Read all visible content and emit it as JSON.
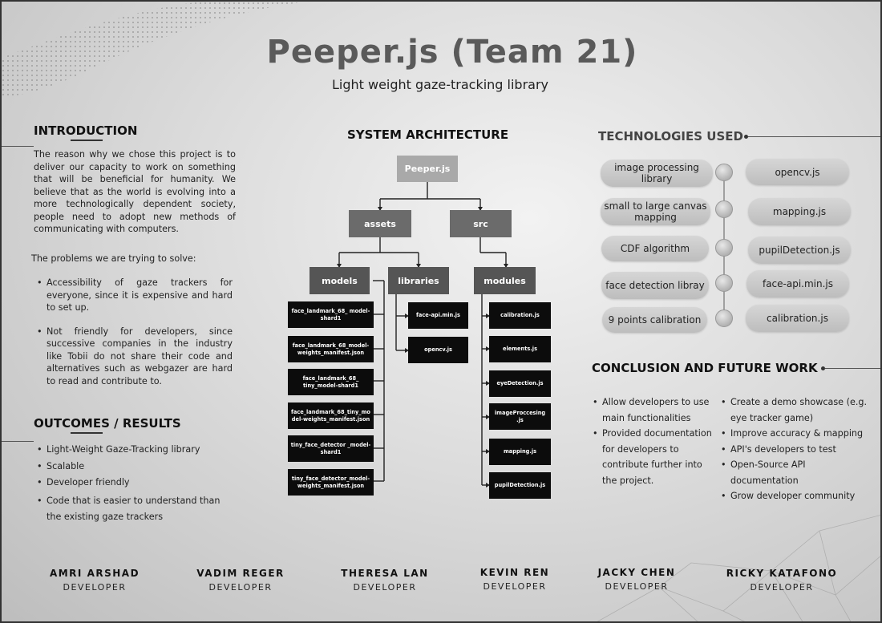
{
  "header": {
    "title": "Peeper.js (Team 21)",
    "subtitle": "Light weight gaze-tracking library"
  },
  "introduction": {
    "heading": "INTRODUCTION",
    "paragraph": "The reason why we chose this project is to deliver our capacity to work on something that will be beneficial for humanity. We believe that as the world is evolving into a more technologically dependent society, people need to adopt new methods of communicating with computers.",
    "problems_label": "The problems we are trying to solve:",
    "problems": [
      "Accessibility of gaze trackers for everyone, since it is expensive and hard to set up.",
      "Not friendly for developers, since successive companies in the industry like Tobii do not share their code and alternatives such as webgazer are hard to read and contribute to."
    ]
  },
  "outcomes": {
    "heading": "OUTCOMES / RESULTS",
    "items": [
      "Light-Weight Gaze-Tracking library",
      "Scalable",
      "Developer friendly",
      "Code that is easier to understand than the existing gaze trackers"
    ]
  },
  "architecture": {
    "heading": "SYSTEM ARCHITECTURE",
    "root": "Peeper.js",
    "assets": "assets",
    "src": "src",
    "models": "models",
    "libraries": "libraries",
    "modules": "modules",
    "model_files": [
      "face_landmark_68_ model-shard1",
      "face_landmark_68_model- weights_manifest.json",
      "face_landmark_68_ tiny_model-shard1",
      "face_landmark_68_tiny_mo del-weights_manifest.json",
      "tiny_face_detector _model-shard1",
      "tiny_face_detector_model- weights_manifest.json"
    ],
    "library_files": [
      "face-api.min.js",
      "opencv.js"
    ],
    "module_files": [
      "calibration.js",
      "elements.js",
      "eyeDetection.js",
      "imageProccesing .js",
      "mapping.js",
      "pupilDetection.js"
    ]
  },
  "technologies": {
    "heading": "TECHNOLOGIES USED",
    "rows": [
      {
        "purpose": "image processing library",
        "tech": "opencv.js"
      },
      {
        "purpose": "small to large canvas mapping",
        "tech": "mapping.js"
      },
      {
        "purpose": "CDF algorithm",
        "tech": "pupilDetection.js"
      },
      {
        "purpose": "face detection libray",
        "tech": "face-api.min.js"
      },
      {
        "purpose": "9 points calibration",
        "tech": "calibration.js"
      }
    ]
  },
  "conclusion": {
    "heading": "CONCLUSION AND FUTURE WORK",
    "left": [
      "Allow developers to use main functionalities",
      "Provided documentation for developers to contribute further into the project."
    ],
    "right": [
      "Create a demo showcase (e.g. eye tracker game)",
      "Improve accuracy & mapping",
      "API's developers to test",
      "Open-Source API documentation",
      "Grow developer community"
    ]
  },
  "team": [
    {
      "name": "AMRI ARSHAD",
      "role": "DEVELOPER"
    },
    {
      "name": "VADIM REGER",
      "role": "DEVELOPER"
    },
    {
      "name": "THERESA LAN",
      "role": "DEVELOPER"
    },
    {
      "name": "KEVIN REN",
      "role": "DEVELOPER"
    },
    {
      "name": "JACKY CHEN",
      "role": "DEVELOPER"
    },
    {
      "name": "RICKY KATAFONO",
      "role": "DEVELOPER"
    }
  ]
}
